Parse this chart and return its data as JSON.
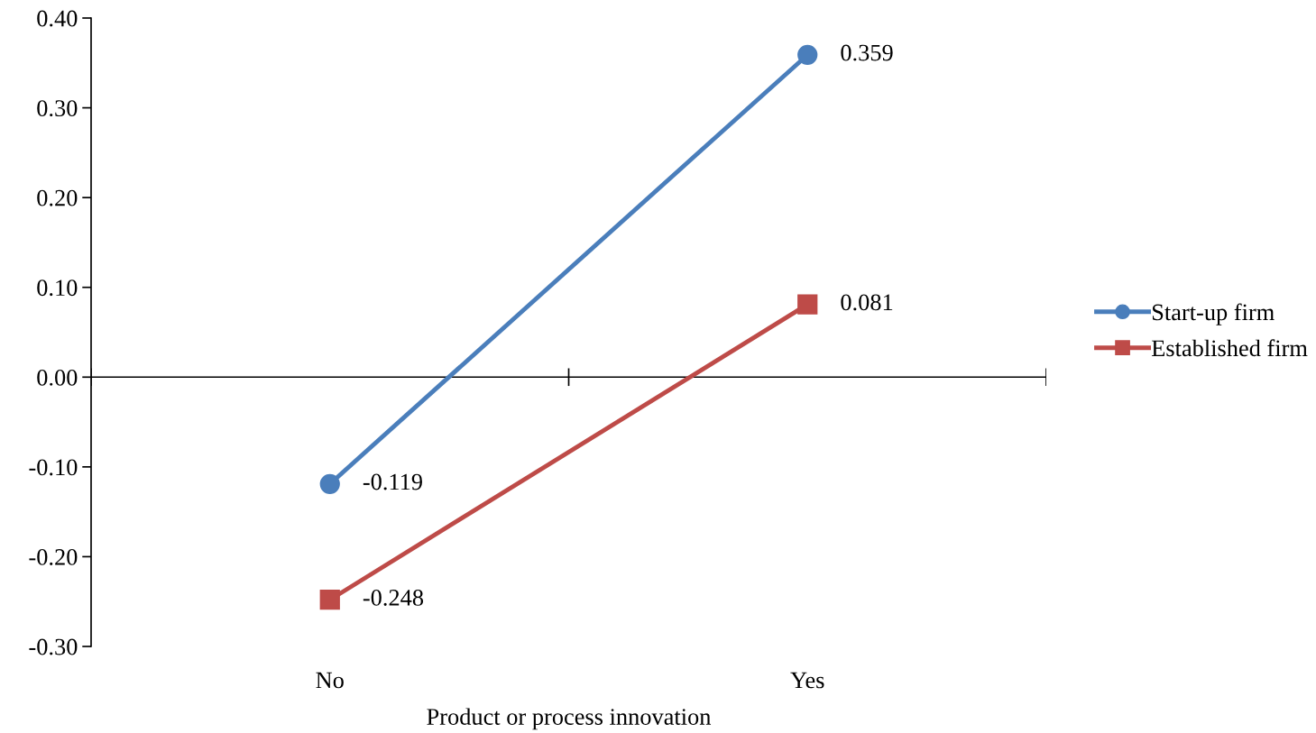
{
  "chart_data": {
    "type": "line",
    "xlabel": "Product or process innovation",
    "categories": [
      "No",
      "Yes"
    ],
    "series": [
      {
        "name": "Start-up firm",
        "color": "#4a7ebb",
        "marker": "circle",
        "values": [
          -0.119,
          0.359
        ]
      },
      {
        "name": "Established firm",
        "color": "#be4b48",
        "marker": "square",
        "values": [
          -0.248,
          0.081
        ]
      }
    ],
    "ylim": [
      -0.3,
      0.4
    ],
    "yticks": [
      {
        "value": -0.3,
        "label": "-0.30"
      },
      {
        "value": -0.2,
        "label": "-0.20"
      },
      {
        "value": -0.1,
        "label": "-0.10"
      },
      {
        "value": 0,
        "label": "0.00"
      },
      {
        "value": 0.1,
        "label": "0.10"
      },
      {
        "value": 0.2,
        "label": "0.20"
      },
      {
        "value": 0.3,
        "label": "0.30"
      },
      {
        "value": 0.4,
        "label": "0.40"
      }
    ],
    "ref_lines": [
      {
        "axis": "y",
        "value": 0,
        "color": "#000000",
        "line_style": "solid"
      }
    ],
    "data_labels": true,
    "grid": false,
    "legend": "right",
    "line_style": "solid"
  }
}
